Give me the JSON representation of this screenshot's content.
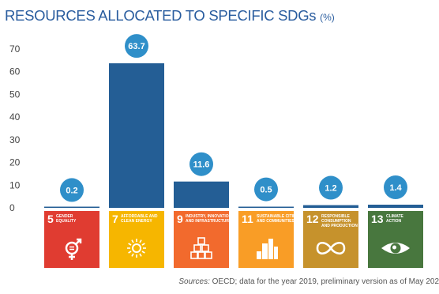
{
  "title": {
    "main": "RESOURCES ALLOCATED TO SPECIFIC SDGs",
    "unit": "(%)"
  },
  "source": {
    "label": "Sources:",
    "text": "OECD; data for the year 2019, preliminary version as of May 202"
  },
  "colors": {
    "bar": "#245e95",
    "badge": "#2f8fc9",
    "tick_text": "#444444"
  },
  "chart_data": {
    "type": "bar",
    "title": "RESOURCES ALLOCATED TO SPECIFIC SDGs (%)",
    "xlabel": "",
    "ylabel": "",
    "ylim": [
      0,
      70
    ],
    "yticks": [
      0,
      10,
      20,
      30,
      40,
      50,
      60,
      70
    ],
    "grid": false,
    "legend": "none",
    "categories": [
      "SDG 5",
      "SDG 7",
      "SDG 9",
      "SDG 11",
      "SDG 12",
      "SDG 13"
    ],
    "values": [
      0.2,
      63.7,
      11.6,
      0.5,
      1.2,
      1.4
    ],
    "data_labels": [
      "0.2",
      "63.7",
      "11.6",
      "0.5",
      "1.2",
      "1.4"
    ]
  },
  "sdg_tiles": [
    {
      "number": "5",
      "line1": "GENDER",
      "line2": "EQUALITY",
      "color": "#e03c31",
      "icon": "gender-equality-icon"
    },
    {
      "number": "7",
      "line1": "AFFORDABLE AND",
      "line2": "CLEAN ENERGY",
      "color": "#f6b600",
      "icon": "sun-icon"
    },
    {
      "number": "9",
      "line1": "INDUSTRY, INNOVATION",
      "line2": "AND INFRASTRUCTURE",
      "color": "#f26a2d",
      "icon": "cubes-icon"
    },
    {
      "number": "11",
      "line1": "SUSTAINABLE CITIES",
      "line2": "AND COMMUNITIES",
      "color": "#f99d26",
      "icon": "city-icon"
    },
    {
      "number": "12",
      "line1": "RESPONSIBLE",
      "line2": "CONSUMPTION",
      "line3": "AND PRODUCTION",
      "color": "#c6922c",
      "icon": "infinity-icon"
    },
    {
      "number": "13",
      "line1": "CLIMATE",
      "line2": "ACTION",
      "color": "#48773e",
      "icon": "eye-earth-icon"
    }
  ]
}
